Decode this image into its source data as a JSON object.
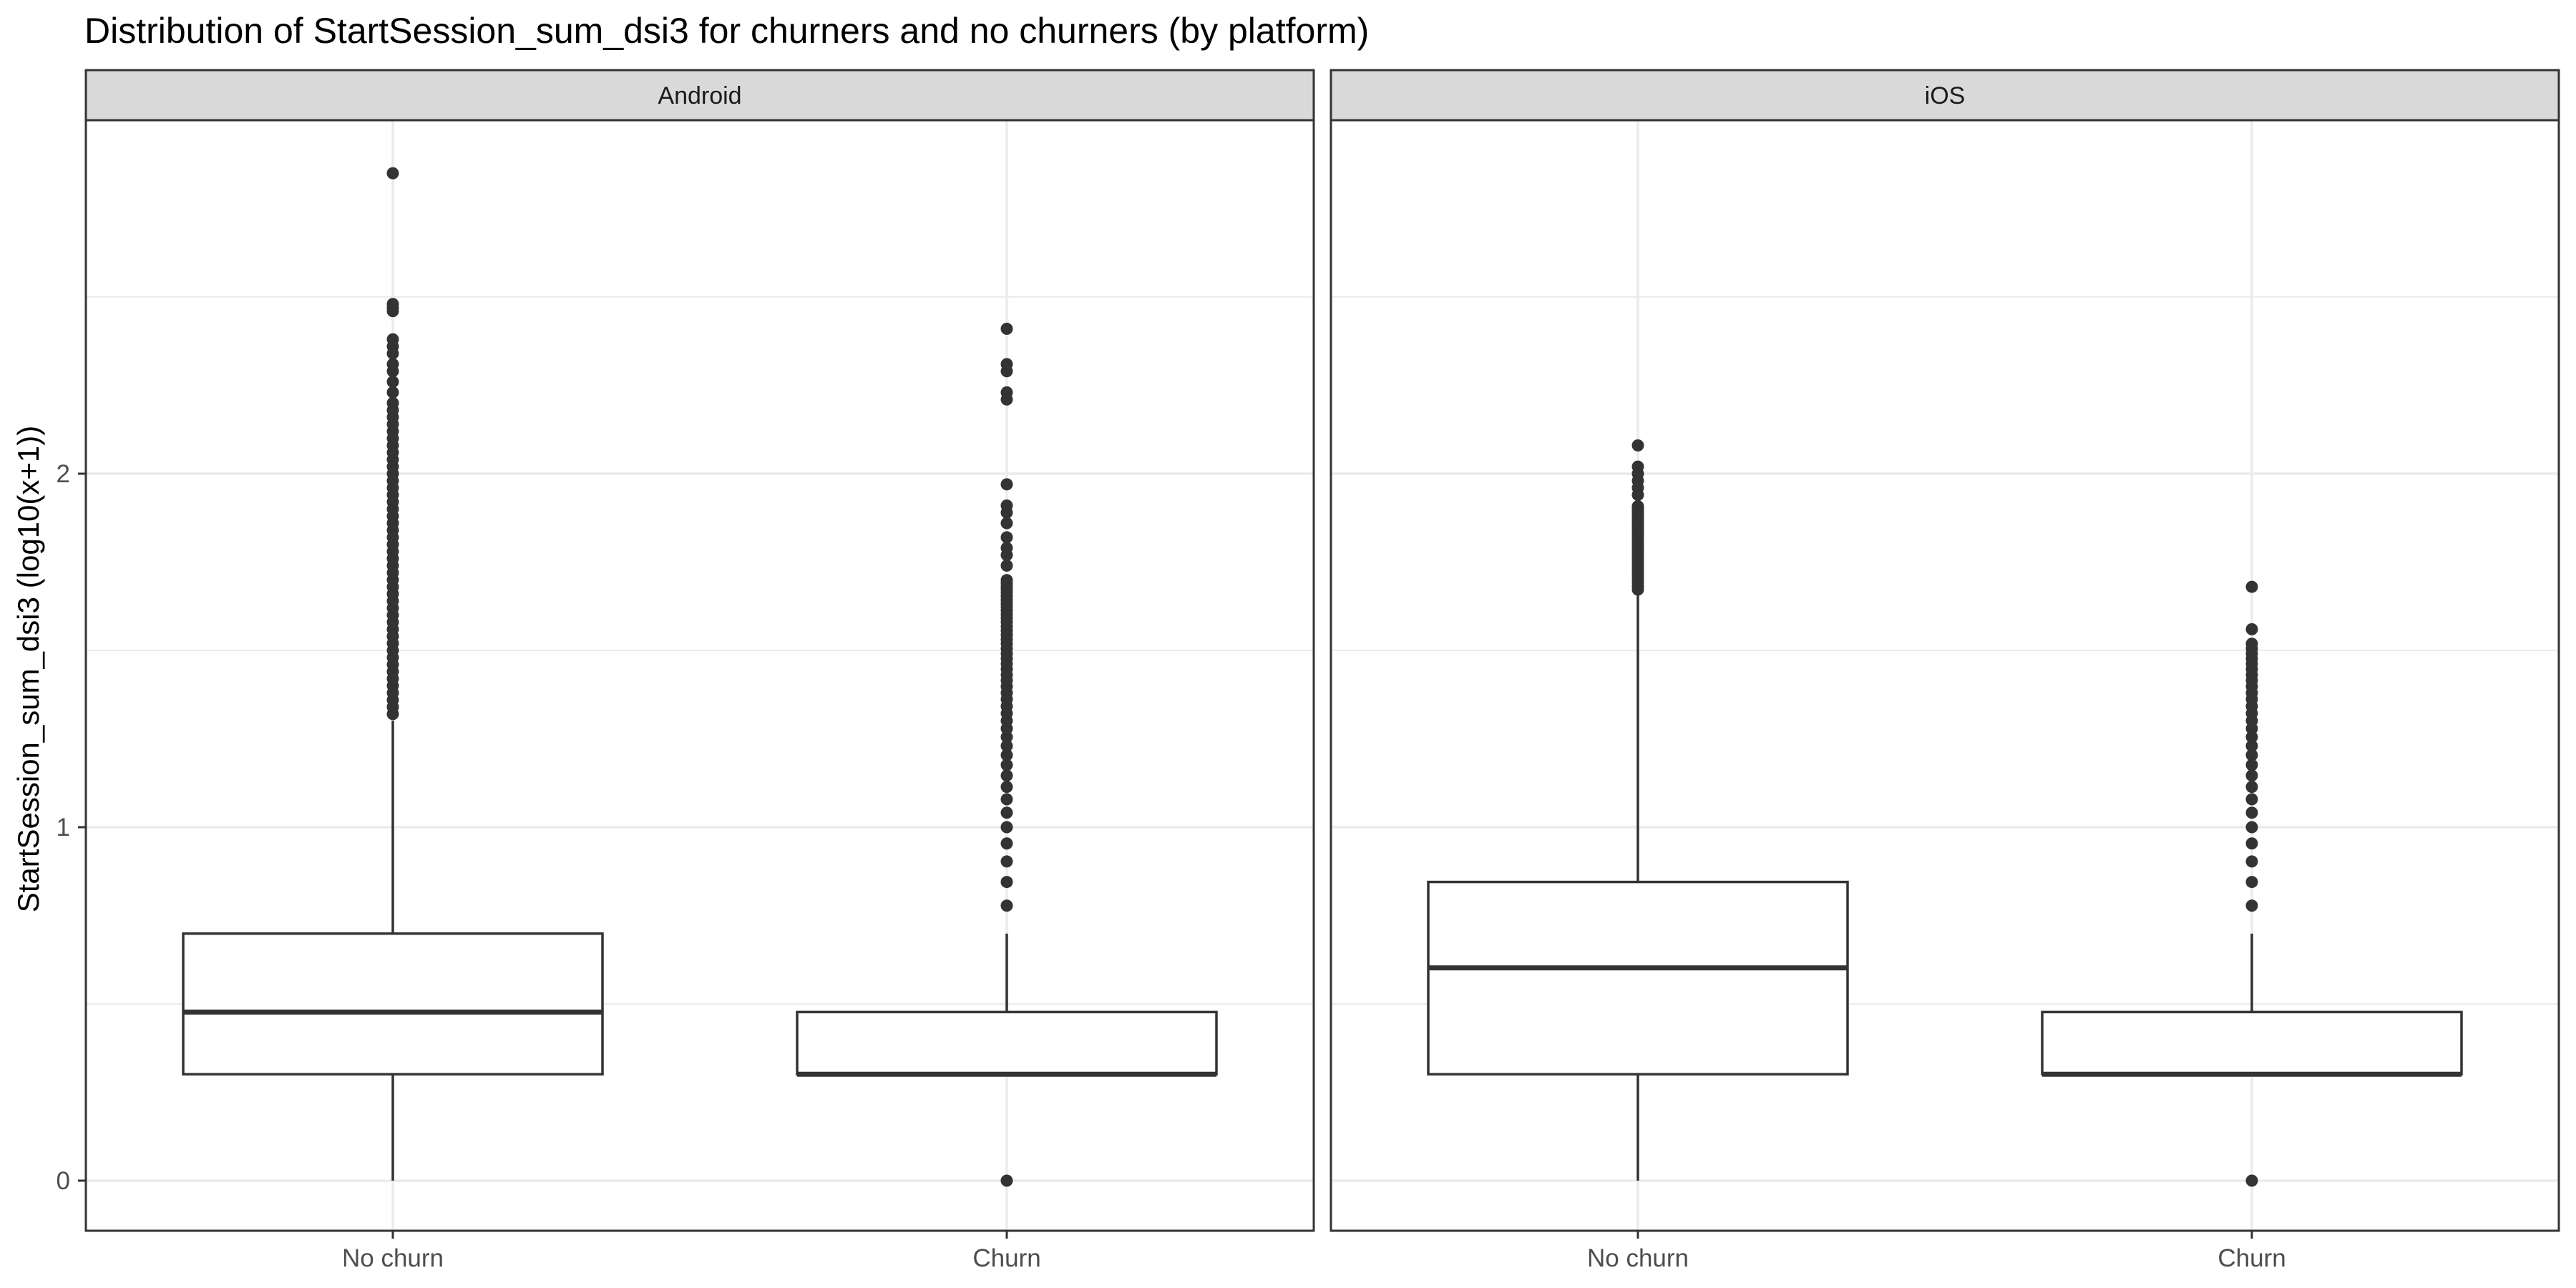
{
  "chart_data": {
    "type": "boxplot",
    "title": "Distribution of StartSession_sum_dsi3 for churners and no churners (by platform)",
    "xlabel": "",
    "ylabel": "StartSession_sum_dsi3 (log10(x+1))",
    "ylim": [
      -0.07,
      2.98
    ],
    "yticks": [
      0,
      1,
      2
    ],
    "categories": [
      "No churn",
      "Churn"
    ],
    "grid": true,
    "legend": "none",
    "colors": {
      "panel_border": "#333333",
      "strip_fill": "#d9d9d9",
      "grid": "#ebebeb",
      "box": "#333333",
      "outlier": "#333333"
    },
    "panels": [
      {
        "name": "Android",
        "boxes": [
          {
            "category": "No churn",
            "lower_whisker": 0,
            "q1": 0.301,
            "median": 0.477,
            "q3": 0.699,
            "upper_whisker": 1.301,
            "outliers": [
              1.32,
              1.34,
              1.36,
              1.38,
              1.4,
              1.42,
              1.44,
              1.46,
              1.48,
              1.5,
              1.52,
              1.54,
              1.56,
              1.58,
              1.6,
              1.62,
              1.64,
              1.66,
              1.68,
              1.7,
              1.72,
              1.74,
              1.76,
              1.78,
              1.8,
              1.82,
              1.84,
              1.86,
              1.88,
              1.9,
              1.92,
              1.94,
              1.96,
              1.98,
              2.0,
              2.02,
              2.04,
              2.06,
              2.08,
              2.1,
              2.12,
              2.14,
              2.16,
              2.18,
              2.2,
              2.23,
              2.26,
              2.29,
              2.31,
              2.34,
              2.36,
              2.38,
              2.46,
              2.47,
              2.48,
              2.85
            ]
          },
          {
            "category": "Churn",
            "lower_whisker": 0.301,
            "q1": 0.301,
            "median": 0.301,
            "q3": 0.477,
            "upper_whisker": 0.699,
            "outliers": [
              0,
              0.778,
              0.845,
              0.903,
              0.954,
              1.0,
              1.041,
              1.079,
              1.114,
              1.146,
              1.176,
              1.204,
              1.23,
              1.255,
              1.279,
              1.301,
              1.322,
              1.342,
              1.362,
              1.38,
              1.398,
              1.415,
              1.431,
              1.447,
              1.462,
              1.477,
              1.491,
              1.505,
              1.519,
              1.531,
              1.544,
              1.556,
              1.568,
              1.58,
              1.591,
              1.602,
              1.613,
              1.623,
              1.633,
              1.643,
              1.653,
              1.663,
              1.672,
              1.681,
              1.69,
              1.699,
              1.74,
              1.77,
              1.79,
              1.82,
              1.86,
              1.89,
              1.91,
              1.97,
              2.21,
              2.23,
              2.29,
              2.31,
              2.41
            ]
          }
        ]
      },
      {
        "name": "iOS",
        "boxes": [
          {
            "category": "No churn",
            "lower_whisker": 0,
            "q1": 0.301,
            "median": 0.602,
            "q3": 0.845,
            "upper_whisker": 1.663,
            "outliers": [
              1.672,
              1.681,
              1.69,
              1.699,
              1.708,
              1.716,
              1.724,
              1.732,
              1.74,
              1.748,
              1.756,
              1.763,
              1.771,
              1.778,
              1.785,
              1.792,
              1.799,
              1.806,
              1.813,
              1.82,
              1.826,
              1.833,
              1.839,
              1.845,
              1.851,
              1.857,
              1.863,
              1.869,
              1.875,
              1.881,
              1.886,
              1.892,
              1.898,
              1.903,
              1.908,
              1.94,
              1.96,
              1.98,
              2.0,
              2.02,
              2.08
            ]
          },
          {
            "category": "Churn",
            "lower_whisker": 0.301,
            "q1": 0.301,
            "median": 0.301,
            "q3": 0.477,
            "upper_whisker": 0.699,
            "outliers": [
              0,
              0.778,
              0.845,
              0.903,
              0.954,
              1.0,
              1.041,
              1.079,
              1.114,
              1.146,
              1.176,
              1.204,
              1.23,
              1.255,
              1.279,
              1.301,
              1.322,
              1.342,
              1.362,
              1.38,
              1.398,
              1.415,
              1.431,
              1.447,
              1.462,
              1.477,
              1.491,
              1.505,
              1.519,
              1.56,
              1.68
            ]
          }
        ]
      }
    ]
  }
}
